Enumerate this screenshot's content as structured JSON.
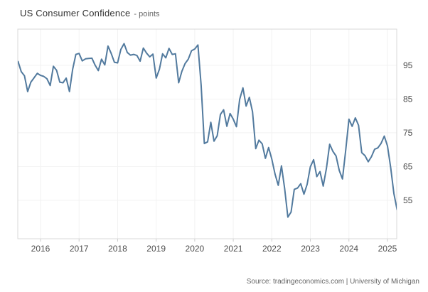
{
  "header": {
    "title": "US Consumer Confidence",
    "subtitle": "- points"
  },
  "footer": {
    "source": "Source: tradingeconomics.com | University of Michigan"
  },
  "colors": {
    "line": "#527a9e",
    "grid": "#f2f2f2",
    "border": "#d9d9d9",
    "tick": "#cccccc",
    "axis_text": "#4d4d4d",
    "background": "#ffffff"
  },
  "chart_data": {
    "type": "line",
    "title": "US Consumer Confidence",
    "unit": "points",
    "frequency": "monthly",
    "start": "2015-06",
    "end": "2025-05",
    "grid": true,
    "legend": "none",
    "x_tick_labels": [
      "2016",
      "2017",
      "2018",
      "2019",
      "2020",
      "2021",
      "2022",
      "2023",
      "2024",
      "2025"
    ],
    "y_ticks": [
      55,
      65,
      75,
      85,
      95
    ],
    "ylim": [
      43.6,
      105.7
    ],
    "series": [
      {
        "name": "US Consumer Confidence (University of Michigan)",
        "values": [
          96.1,
          93.1,
          91.9,
          87.2,
          90.0,
          91.3,
          92.6,
          92.0,
          91.7,
          91.0,
          89.0,
          94.7,
          93.5,
          90.0,
          89.8,
          91.2,
          87.2,
          93.8,
          98.2,
          98.5,
          96.3,
          96.9,
          97.0,
          97.1,
          95.0,
          93.4,
          96.8,
          95.1,
          100.7,
          98.5,
          95.9,
          95.7,
          99.7,
          101.4,
          98.8,
          98.0,
          98.2,
          97.9,
          96.2,
          100.1,
          98.6,
          97.5,
          98.3,
          91.2,
          93.8,
          98.4,
          97.2,
          100.0,
          98.2,
          98.4,
          89.8,
          93.2,
          95.5,
          96.8,
          99.3,
          99.8,
          101.0,
          89.1,
          71.8,
          72.3,
          78.1,
          72.5,
          74.1,
          80.4,
          81.8,
          76.9,
          80.7,
          79.0,
          76.8,
          84.9,
          88.3,
          82.9,
          85.5,
          81.2,
          70.3,
          72.8,
          71.7,
          67.4,
          70.6,
          67.2,
          62.8,
          59.4,
          65.2,
          58.4,
          50.0,
          51.5,
          58.2,
          58.6,
          59.9,
          56.8,
          59.7,
          64.9,
          67.0,
          62.0,
          63.5,
          59.2,
          64.4,
          71.6,
          69.5,
          68.1,
          63.8,
          61.3,
          69.7,
          79.0,
          76.9,
          79.4,
          77.2,
          69.1,
          68.2,
          66.4,
          67.9,
          70.1,
          70.5,
          71.8,
          74.0,
          71.1,
          64.7,
          57.0,
          52.2,
          50.8
        ]
      }
    ]
  }
}
